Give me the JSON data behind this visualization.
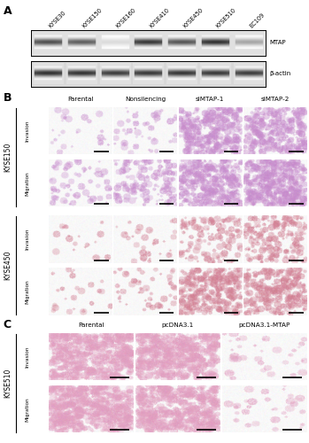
{
  "panel_A": {
    "label": "A",
    "cell_lines": [
      "KYSE30",
      "KYSE150",
      "KYSE160",
      "KYSE410",
      "KYSE450",
      "KYSE510",
      "EC109"
    ],
    "blot_labels": [
      "MTAP",
      "β-actin"
    ],
    "mtap_intensities": [
      0.75,
      0.68,
      0.15,
      0.85,
      0.72,
      0.88,
      0.38
    ],
    "actin_intensities": [
      0.88,
      0.87,
      0.83,
      0.85,
      0.86,
      0.85,
      0.83
    ]
  },
  "panel_B": {
    "label": "B",
    "col_labels": [
      "Parental",
      "Nonsilencing",
      "siMTAP-1",
      "siMTAP-2"
    ],
    "row_groups": [
      "KYSE150",
      "KYSE450"
    ],
    "row_labels": [
      "Invasion",
      "Migration"
    ],
    "kyse150_invasion_densities": [
      0.04,
      0.07,
      0.55,
      0.48
    ],
    "kyse150_migration_densities": [
      0.1,
      0.22,
      0.58,
      0.72
    ],
    "kyse450_invasion_densities": [
      0.03,
      0.05,
      0.2,
      0.3
    ],
    "kyse450_migration_densities": [
      0.04,
      0.08,
      0.5,
      0.42
    ],
    "kyse150_color_r": 0.78,
    "kyse150_color_g": 0.55,
    "kyse150_color_b": 0.8,
    "kyse450_color_r": 0.82,
    "kyse450_color_g": 0.5,
    "kyse450_color_b": 0.58
  },
  "panel_C": {
    "label": "C",
    "col_labels": [
      "Parental",
      "pcDNA3.1",
      "pcDNA3.1-MTAP"
    ],
    "row_group": "KYSE510",
    "row_labels": [
      "Invasion",
      "Migration"
    ],
    "invasion_densities": [
      0.78,
      0.72,
      0.06
    ],
    "migration_densities": [
      0.8,
      0.75,
      0.05
    ],
    "color_r": 0.88,
    "color_g": 0.62,
    "color_b": 0.75
  }
}
